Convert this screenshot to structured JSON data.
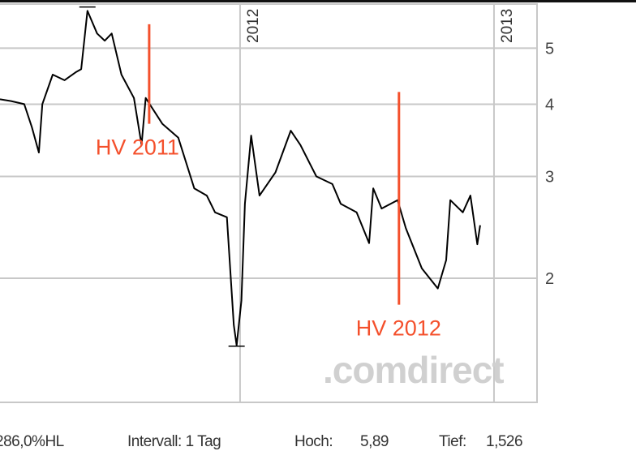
{
  "chart_data": {
    "type": "line",
    "title": "",
    "xlabel": "",
    "ylabel": "",
    "y_scale": "log",
    "xlim": [
      "2011-01-20",
      "2013-03-04"
    ],
    "ylim": [
      1.22,
      5.96
    ],
    "grid": true,
    "x_ticks": [
      {
        "date": "2012-01-01",
        "label": "2012"
      },
      {
        "date": "2013-01-01",
        "label": "2013"
      }
    ],
    "y_ticks": [
      2,
      3,
      4,
      5
    ],
    "y_tick_labels": [
      "2",
      "3",
      "4",
      "5"
    ],
    "series": [
      {
        "color": "#000000",
        "points": [
          [
            "2011-01-20",
            4.08
          ],
          [
            "2011-02-05",
            4.05
          ],
          [
            "2011-02-24",
            4.0
          ],
          [
            "2011-03-07",
            3.65
          ],
          [
            "2011-03-17",
            3.3
          ],
          [
            "2011-03-22",
            4.0
          ],
          [
            "2011-04-06",
            4.5
          ],
          [
            "2011-04-23",
            4.4
          ],
          [
            "2011-05-10",
            4.55
          ],
          [
            "2011-05-17",
            4.6
          ],
          [
            "2011-05-26",
            5.8
          ],
          [
            "2011-06-09",
            5.3
          ],
          [
            "2011-06-20",
            5.15
          ],
          [
            "2011-06-30",
            5.3
          ],
          [
            "2011-07-14",
            4.5
          ],
          [
            "2011-08-01",
            4.1
          ],
          [
            "2011-08-12",
            3.4
          ],
          [
            "2011-08-18",
            4.1
          ],
          [
            "2011-09-11",
            3.7
          ],
          [
            "2011-10-04",
            3.5
          ],
          [
            "2011-10-27",
            2.86
          ],
          [
            "2011-11-14",
            2.78
          ],
          [
            "2011-11-26",
            2.6
          ],
          [
            "2011-12-13",
            2.55
          ],
          [
            "2011-12-23",
            1.66
          ],
          [
            "2011-12-27",
            1.53
          ],
          [
            "2012-01-03",
            1.83
          ],
          [
            "2012-01-08",
            2.69
          ],
          [
            "2012-01-17",
            3.53
          ],
          [
            "2012-01-29",
            2.78
          ],
          [
            "2012-02-21",
            3.05
          ],
          [
            "2012-03-14",
            3.6
          ],
          [
            "2012-03-28",
            3.4
          ],
          [
            "2012-04-20",
            3.0
          ],
          [
            "2012-05-13",
            2.91
          ],
          [
            "2012-05-25",
            2.69
          ],
          [
            "2012-06-17",
            2.6
          ],
          [
            "2012-07-05",
            2.3
          ],
          [
            "2012-07-11",
            2.86
          ],
          [
            "2012-07-23",
            2.64
          ],
          [
            "2012-08-15",
            2.73
          ],
          [
            "2012-08-27",
            2.44
          ],
          [
            "2012-09-19",
            2.08
          ],
          [
            "2012-10-12",
            1.92
          ],
          [
            "2012-10-24",
            2.15
          ],
          [
            "2012-10-30",
            2.73
          ],
          [
            "2012-11-17",
            2.6
          ],
          [
            "2012-11-28",
            2.78
          ],
          [
            "2012-12-08",
            2.29
          ],
          [
            "2012-12-12",
            2.47
          ]
        ]
      }
    ],
    "high_marker": {
      "date": "2011-05-26",
      "value": 5.89
    },
    "low_marker": {
      "date": "2011-12-27",
      "value": 1.526
    },
    "annotations": [
      {
        "label": "HV 2011",
        "date": "2011-08-23",
        "from": 3.7,
        "to": 5.5,
        "color": "#f4502c"
      },
      {
        "label": "HV 2012",
        "date": "2012-08-17",
        "from": 1.8,
        "to": 4.2,
        "color": "#f4502c"
      }
    ],
    "watermark": ".comdirect"
  },
  "footer": {
    "range": "286,0%HL",
    "interval": "Intervall: 1 Tag",
    "high_label": "Hoch:",
    "high_value": "5,89",
    "low_label": "Tief:",
    "low_value": "1,526"
  }
}
